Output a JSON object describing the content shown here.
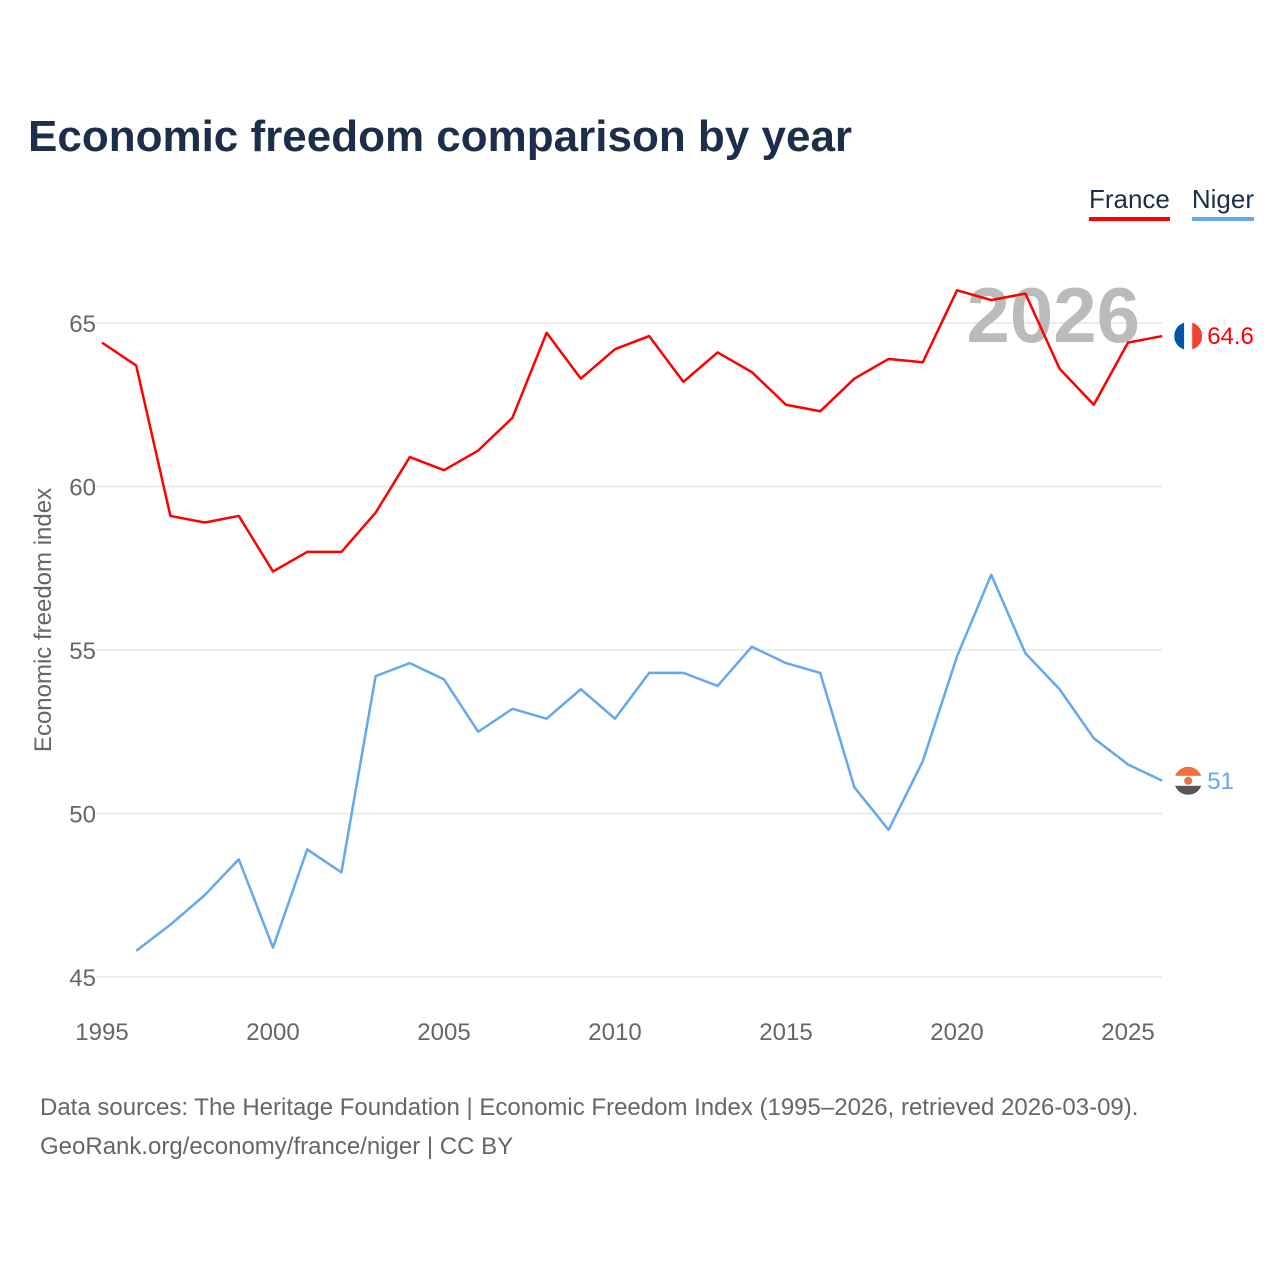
{
  "title": "Economic freedom comparison by year",
  "watermark_year": "2026",
  "footer": {
    "line1": "Data sources: The Heritage Foundation | Economic Freedom Index (1995–2026, retrieved 2026-03-09).",
    "line2": "GeoRank.org/economy/france/niger | CC BY"
  },
  "chart_data": {
    "type": "line",
    "title": "Economic freedom comparison by year",
    "xlabel": "",
    "ylabel": "Economic freedom index",
    "xlim": [
      1995,
      2026
    ],
    "ylim": [
      45,
      67
    ],
    "x_ticks": [
      1995,
      2000,
      2005,
      2010,
      2015,
      2020,
      2025
    ],
    "y_ticks": [
      45,
      50,
      55,
      60,
      65
    ],
    "grid": true,
    "legend_position": "top-right",
    "series": [
      {
        "name": "France",
        "color": "#ff0000",
        "end_label": "64.6",
        "x": [
          1995,
          1996,
          1997,
          1998,
          1999,
          2000,
          2001,
          2002,
          2003,
          2004,
          2005,
          2006,
          2007,
          2008,
          2009,
          2010,
          2011,
          2012,
          2013,
          2014,
          2015,
          2016,
          2017,
          2018,
          2019,
          2020,
          2021,
          2022,
          2023,
          2024,
          2025,
          2026
        ],
        "values": [
          64.4,
          63.7,
          59.1,
          58.9,
          59.1,
          57.4,
          58.0,
          58.0,
          59.2,
          60.9,
          60.5,
          61.1,
          62.1,
          64.7,
          63.3,
          64.2,
          64.6,
          63.2,
          64.1,
          63.5,
          62.5,
          62.3,
          63.3,
          63.9,
          63.8,
          66.0,
          65.7,
          65.9,
          63.6,
          62.5,
          64.4,
          64.6
        ]
      },
      {
        "name": "Niger",
        "color": "#64a8ee",
        "end_label": "51",
        "x": [
          1996,
          1997,
          1998,
          1999,
          2000,
          2001,
          2002,
          2003,
          2004,
          2005,
          2006,
          2007,
          2008,
          2009,
          2010,
          2011,
          2012,
          2013,
          2014,
          2015,
          2016,
          2017,
          2018,
          2019,
          2020,
          2021,
          2022,
          2023,
          2024,
          2025,
          2026
        ],
        "values": [
          45.8,
          46.6,
          47.5,
          48.6,
          45.9,
          48.9,
          48.2,
          54.2,
          54.6,
          54.1,
          52.5,
          53.2,
          52.9,
          53.8,
          52.9,
          54.3,
          54.3,
          53.9,
          55.1,
          54.6,
          54.3,
          50.8,
          49.5,
          51.6,
          54.8,
          57.3,
          54.9,
          53.8,
          52.3,
          51.5,
          51.0
        ]
      }
    ]
  }
}
